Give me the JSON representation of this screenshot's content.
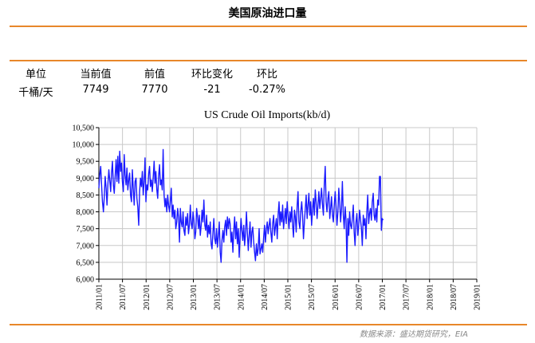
{
  "header": {
    "title": "美国原油进口量"
  },
  "summary": {
    "columns": [
      "单位",
      "当前值",
      "前值",
      "环比变化",
      "环比"
    ],
    "values": [
      "千桶/天",
      "7749",
      "7770",
      "-21",
      "-0.27%"
    ]
  },
  "source": "数据来源：盛达期货研究，EIA",
  "colors": {
    "accent": "#e8872a",
    "line": "#1a1aff",
    "grid": "#c8c8c8"
  },
  "chart_data": {
    "type": "line",
    "title": "US Crude Oil Imports(kb/d)",
    "xlabel": "",
    "ylabel": "",
    "ylim": [
      6000,
      10500
    ],
    "yticks": [
      "6,000",
      "6,500",
      "7,000",
      "7,500",
      "8,000",
      "8,500",
      "9,000",
      "9,500",
      "10,000",
      "10,500"
    ],
    "xlim": [
      "2011/01",
      "2019/01"
    ],
    "xticks": [
      "2011/01",
      "2011/07",
      "2012/01",
      "2012/07",
      "2013/01",
      "2013/07",
      "2014/01",
      "2014/07",
      "2015/01",
      "2015/07",
      "2016/01",
      "2016/07",
      "2017/01",
      "2017/07",
      "2018/01",
      "2018/07",
      "2019/01"
    ],
    "grid": true,
    "series": [
      {
        "start": "2011/01",
        "frequency": "weekly",
        "values": [
          8700,
          9100,
          9350,
          8800,
          8300,
          8000,
          8450,
          9050,
          8700,
          8200,
          8850,
          9250,
          8950,
          8600,
          9150,
          9500,
          8800,
          8550,
          9050,
          9550,
          8900,
          9650,
          8850,
          9800,
          9200,
          9450,
          8900,
          8600,
          9700,
          9100,
          8800,
          9300,
          8650,
          8950,
          9150,
          8500,
          8300,
          9250,
          8700,
          8200,
          8900,
          9000,
          8400,
          8150,
          7600,
          8600,
          9000,
          8750,
          9200,
          8500,
          8900,
          9600,
          8300,
          8800,
          8650,
          9150,
          9350,
          8750,
          8950,
          8600,
          9000,
          9500,
          8850,
          9200,
          8650,
          8400,
          9050,
          9400,
          8800,
          8950,
          8650,
          9850,
          8500,
          8150,
          8400,
          8000,
          8500,
          8200,
          8000,
          8350,
          8700,
          7850,
          8200,
          7800,
          8050,
          7500,
          7700,
          8100,
          7850,
          7100,
          8100,
          7700,
          7550,
          8000,
          7450,
          7300,
          7850,
          7600,
          7950,
          7350,
          7600,
          8200,
          7650,
          7500,
          8000,
          7750,
          7200,
          7400,
          8100,
          7850,
          7500,
          7900,
          7300,
          7600,
          8050,
          7700,
          8350,
          7600,
          7450,
          7900,
          7250,
          7600,
          7350,
          7700,
          7050,
          6900,
          7400,
          7800,
          7200,
          7050,
          7500,
          6950,
          7300,
          7700,
          6800,
          6500,
          7150,
          7450,
          7100,
          7550,
          7750,
          7300,
          7850,
          7500,
          7800,
          7650,
          7100,
          7400,
          6800,
          7450,
          7850,
          7200,
          7700,
          7050,
          7500,
          6650,
          7250,
          7800,
          7450,
          7150,
          7600,
          7000,
          7350,
          8000,
          7400,
          6850,
          7300,
          7700,
          6950,
          7400,
          7550,
          7100,
          6800,
          6550,
          7050,
          6700,
          6900,
          7500,
          6750,
          6900,
          7050,
          6800,
          7250,
          7600,
          7100,
          7500,
          7700,
          7350,
          7600,
          7800,
          7400,
          7100,
          7650,
          7900,
          7300,
          7550,
          7800,
          7200,
          7900,
          8300,
          7600,
          8000,
          7700,
          8200,
          7500,
          7800,
          8100,
          7650,
          8300,
          7900,
          7500,
          8000,
          7700,
          8150,
          7600,
          7250,
          8050,
          7850,
          7400,
          8200,
          8600,
          7700,
          7500,
          8000,
          8300,
          7900,
          7200,
          7700,
          8100,
          8500,
          7800,
          8200,
          8550,
          7900,
          8300,
          7600,
          8100,
          8400,
          7900,
          8650,
          8300,
          7800,
          8200,
          8600,
          8100,
          8400,
          8700,
          8200,
          7900,
          8800,
          9350,
          8300,
          8000,
          8400,
          8600,
          7800,
          8100,
          8450,
          7900,
          7700,
          8200,
          8600,
          8150,
          7600,
          8000,
          8700,
          8300,
          7700,
          8100,
          8900,
          7900,
          7500,
          8150,
          7750,
          6500,
          7800,
          7300,
          8000,
          7600,
          7500,
          7800,
          8200,
          7400,
          7000,
          7700,
          7950,
          7300,
          7600,
          8050,
          7750,
          7500,
          7000,
          7900,
          7600,
          7800,
          7200,
          8000,
          8500,
          7650,
          7950,
          8100,
          7750,
          8300,
          8550,
          7900,
          7750,
          8100,
          7700,
          8350,
          8200,
          9050,
          9050,
          7450,
          7800,
          7750
        ]
      }
    ]
  }
}
